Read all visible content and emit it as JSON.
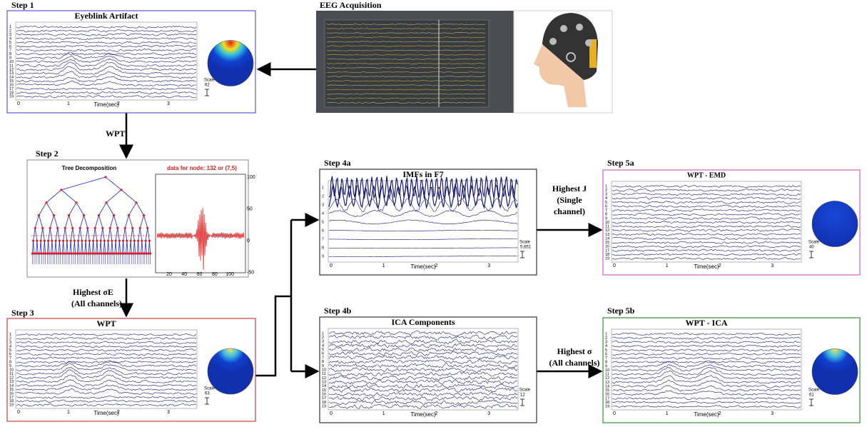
{
  "acquisition": {
    "title": "EEG Acquisition"
  },
  "panels": [
    {
      "step": "Step 1",
      "title": "Eyeblink Artifact",
      "scale_label": "Scale",
      "scale_value": "62",
      "x_ticks": [
        "0",
        "1",
        "2",
        "3"
      ],
      "x_label": "Time(sec)",
      "channels": [
        "1",
        "2",
        "3",
        "4",
        "5",
        "6",
        "7",
        "8",
        "9",
        "10",
        "11",
        "12",
        "13",
        "14",
        "15",
        "16",
        "17",
        "18",
        "19"
      ]
    },
    {
      "step": "Step 3",
      "title": "WPT",
      "scale_label": "Scale",
      "scale_value": "63",
      "x_ticks": [
        "0",
        "1",
        "2",
        "3"
      ],
      "x_label": "Time(sec)",
      "channels": [
        "1",
        "2",
        "3",
        "4",
        "5",
        "6",
        "7",
        "8",
        "9",
        "10",
        "11",
        "12",
        "13",
        "14",
        "15",
        "16",
        "17",
        "18",
        "19"
      ]
    },
    {
      "step": "Step 4a",
      "title": "IMFs in F7",
      "scale_label": "Scale",
      "scale_value": "5.651",
      "x_ticks": [
        "0",
        "1",
        "2",
        "3"
      ],
      "x_label": "Time(sec)",
      "channels": [
        "1",
        "2",
        "3",
        "4",
        "5",
        "6",
        "7",
        "8",
        "9"
      ]
    },
    {
      "step": "Step 4b",
      "title": "ICA Components",
      "scale_label": "Scale",
      "scale_value": "12",
      "x_ticks": [
        "0",
        "1",
        "2",
        "3"
      ],
      "x_label": "Time(sec)",
      "channels": [
        "1",
        "2",
        "3",
        "4",
        "5",
        "6",
        "7",
        "8",
        "9",
        "10",
        "11",
        "12",
        "13",
        "14",
        "15",
        "16",
        "17",
        "18",
        "19"
      ]
    },
    {
      "step": "Step 5a",
      "title": "WPT - EMD",
      "scale_label": "Scale",
      "scale_value": "40",
      "x_ticks": [
        "0",
        "1",
        "2",
        "3"
      ],
      "x_label": "Time(sec)",
      "channels": [
        "1",
        "2",
        "3",
        "4",
        "5",
        "6",
        "7",
        "8",
        "9",
        "10",
        "11",
        "12",
        "13",
        "14",
        "15",
        "16",
        "17",
        "18",
        "19"
      ]
    },
    {
      "step": "Step 5b",
      "title": "WPT - ICA",
      "scale_label": "Scale",
      "scale_value": "61",
      "x_ticks": [
        "0",
        "1",
        "2",
        "3"
      ],
      "x_label": "Time(sec)",
      "channels": [
        "1",
        "2",
        "3",
        "4",
        "5",
        "6",
        "7",
        "8",
        "9",
        "10",
        "11",
        "12",
        "13",
        "14",
        "15",
        "16",
        "17",
        "18",
        "19"
      ]
    }
  ],
  "decomposition": {
    "step": "Step 2",
    "tree_title": "Tree Decomposition",
    "node_title": "data for node: 132 or (7,5)",
    "y_ticks": [
      "100",
      "50",
      "0",
      "-50"
    ],
    "x_ticks": [
      "20",
      "40",
      "60",
      "80",
      "100"
    ]
  },
  "arrows": {
    "wpt": "WPT",
    "sigma_e": [
      "Highest σE",
      "(All channels)"
    ],
    "highest_j": [
      "Highest J",
      "(Single",
      "channel)"
    ],
    "sigma": [
      "Highest σ",
      "(All channels)"
    ]
  }
}
